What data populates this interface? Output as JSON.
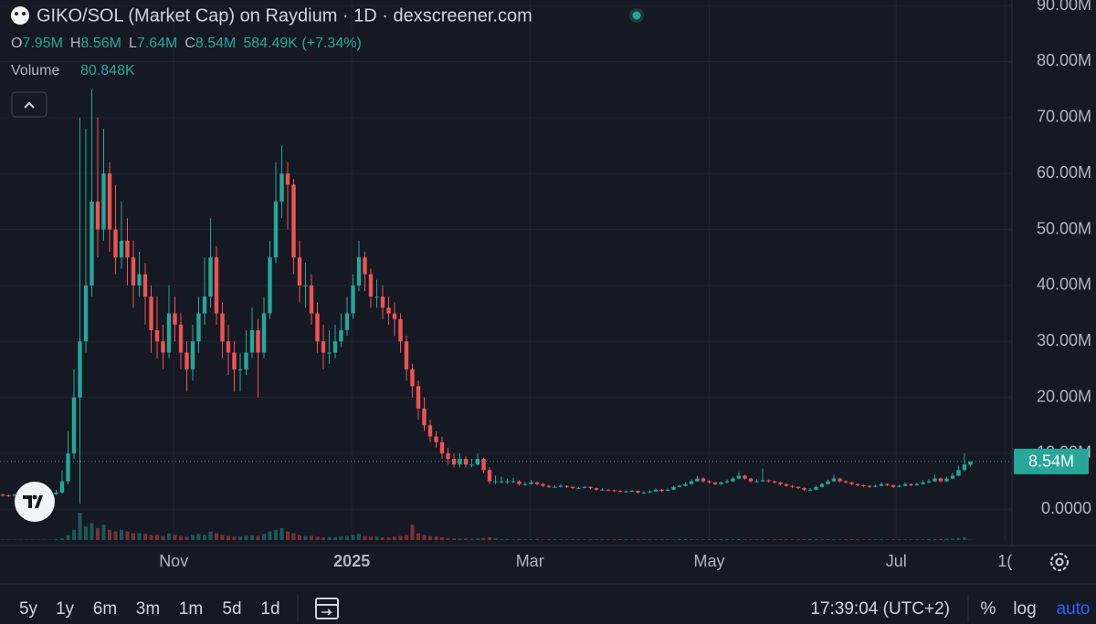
{
  "chart_data": {
    "type": "candlestick",
    "title": "GIKO/SOL (Market Cap) on Raydium · 1D · dexscreener.com",
    "ohlc_legend": [
      {
        "key": "O",
        "value": 7.95,
        "label": "7.95M"
      },
      {
        "key": "H",
        "value": 8.56,
        "label": "8.56M"
      },
      {
        "key": "L",
        "value": 7.64,
        "label": "7.64M"
      },
      {
        "key": "C",
        "value": 8.54,
        "label": "8.54M"
      }
    ],
    "change": "584.49K (+7.34%)",
    "volume_title": "Volume",
    "volume_legend": {
      "value": 80.848,
      "label": "80.848K"
    },
    "up_color": "#26a69a",
    "down_color": "#ef5350",
    "ylim": [
      -5.5,
      91
    ],
    "yticks": [
      {
        "value": 0,
        "label": "0.0000"
      },
      {
        "value": 10,
        "label": "10.00M"
      },
      {
        "value": 20,
        "label": "20.00M"
      },
      {
        "value": 30,
        "label": "30.00M"
      },
      {
        "value": 40,
        "label": "40.00M"
      },
      {
        "value": 50,
        "label": "50.00M"
      },
      {
        "value": 60,
        "label": "60.00M"
      },
      {
        "value": 70,
        "label": "70.00M"
      },
      {
        "value": 80,
        "label": "80.00M"
      },
      {
        "value": 90,
        "label": "90.00M"
      }
    ],
    "xticks": [
      {
        "value": 28.8,
        "label": "Nov"
      },
      {
        "value": 58.8,
        "label": "2025"
      },
      {
        "value": 88.8,
        "label": "Mar"
      },
      {
        "value": 119,
        "label": "May"
      },
      {
        "value": 150.5,
        "label": "Jul"
      },
      {
        "value": 168.8,
        "label": "1("
      }
    ],
    "last_price": {
      "value": 8.54,
      "label": "8.54M"
    },
    "candles": [
      [
        2.6,
        2.8,
        2.3,
        2.5
      ],
      [
        2.5,
        2.7,
        2.2,
        2.4
      ],
      [
        2.4,
        2.8,
        2.3,
        2.6
      ],
      [
        2.6,
        2.7,
        2.3,
        2.5
      ],
      [
        2.5,
        2.6,
        2.1,
        2.3
      ],
      [
        2.3,
        2.6,
        2.2,
        2.4
      ],
      [
        2.4,
        2.8,
        2.3,
        2.6
      ],
      [
        2.6,
        2.7,
        2.3,
        2.5
      ],
      [
        2.5,
        2.9,
        2.4,
        2.7
      ],
      [
        2.7,
        3.5,
        2.6,
        3
      ],
      [
        3,
        7,
        2.8,
        5
      ],
      [
        5,
        14,
        4.5,
        10
      ],
      [
        10,
        25,
        9,
        20
      ],
      [
        20,
        70,
        1,
        30
      ],
      [
        30,
        68,
        28,
        40
      ],
      [
        40,
        75,
        38,
        55
      ],
      [
        55,
        70,
        45,
        50
      ],
      [
        50,
        68,
        48,
        60
      ],
      [
        60,
        62,
        46,
        50
      ],
      [
        50,
        58,
        42,
        45
      ],
      [
        45,
        55,
        43,
        48
      ],
      [
        48,
        52,
        40,
        45
      ],
      [
        45,
        48,
        36,
        40
      ],
      [
        40,
        46,
        38,
        42
      ],
      [
        42,
        44,
        33,
        38
      ],
      [
        38,
        40,
        28,
        32
      ],
      [
        32,
        38,
        27,
        30
      ],
      [
        30,
        33,
        25,
        28
      ],
      [
        28,
        40,
        27,
        35
      ],
      [
        35,
        38,
        30,
        33
      ],
      [
        33,
        35,
        25,
        28
      ],
      [
        28,
        30,
        21,
        25
      ],
      [
        25,
        33,
        23,
        30
      ],
      [
        30,
        38,
        28,
        35
      ],
      [
        35,
        45,
        33,
        38
      ],
      [
        38,
        52,
        36,
        45
      ],
      [
        45,
        47,
        33,
        35
      ],
      [
        35,
        37,
        27,
        30
      ],
      [
        30,
        33,
        24,
        28
      ],
      [
        28,
        30,
        21,
        25
      ],
      [
        25,
        28,
        21,
        25
      ],
      [
        25,
        32,
        24,
        28
      ],
      [
        28,
        36,
        27,
        32
      ],
      [
        32,
        34,
        20,
        28
      ],
      [
        28,
        38,
        27,
        35
      ],
      [
        35,
        48,
        34,
        45
      ],
      [
        45,
        62,
        44,
        55
      ],
      [
        55,
        65,
        52,
        60
      ],
      [
        60,
        62,
        50,
        58
      ],
      [
        58,
        59,
        42,
        45
      ],
      [
        45,
        48,
        37,
        40
      ],
      [
        40,
        44,
        36,
        40
      ],
      [
        40,
        42,
        33,
        35
      ],
      [
        35,
        37,
        28,
        30
      ],
      [
        30,
        33,
        25,
        28
      ],
      [
        28,
        32,
        26,
        28
      ],
      [
        28,
        33,
        27,
        30
      ],
      [
        30,
        35,
        29,
        32
      ],
      [
        32,
        38,
        31,
        35
      ],
      [
        35,
        42,
        34,
        40
      ],
      [
        40,
        48,
        39,
        45
      ],
      [
        45,
        46,
        39,
        42
      ],
      [
        42,
        43,
        36,
        38
      ],
      [
        38,
        41,
        36,
        38
      ],
      [
        38,
        40,
        34,
        36
      ],
      [
        36,
        38,
        33,
        35
      ],
      [
        35,
        37,
        31,
        34
      ],
      [
        34,
        35,
        28,
        30
      ],
      [
        30,
        31,
        23,
        25
      ],
      [
        25,
        26,
        20,
        22
      ],
      [
        22,
        23,
        16,
        18
      ],
      [
        18,
        20,
        14,
        15
      ],
      [
        15,
        16,
        12,
        13
      ],
      [
        13,
        14,
        11,
        12
      ],
      [
        12,
        13,
        9,
        10
      ],
      [
        10,
        11,
        8,
        9
      ],
      [
        9,
        10,
        7.5,
        8
      ],
      [
        8,
        10,
        7.5,
        9
      ],
      [
        9,
        9.5,
        7.5,
        8
      ],
      [
        8,
        9,
        7.5,
        8
      ],
      [
        8,
        10,
        7.8,
        9
      ],
      [
        9,
        9.2,
        6.5,
        7
      ],
      [
        7,
        7.5,
        4.5,
        5
      ],
      [
        5,
        6,
        4.5,
        5
      ],
      [
        5,
        5.8,
        4.6,
        5
      ],
      [
        5,
        5.5,
        4.5,
        5
      ],
      [
        5,
        5.6,
        4.7,
        5
      ],
      [
        5,
        5.2,
        4.2,
        4.5
      ],
      [
        4.5,
        4.9,
        4.2,
        4.5
      ],
      [
        4.5,
        5.2,
        4.4,
        4.8
      ],
      [
        4.8,
        5,
        4.3,
        4.5
      ],
      [
        4.5,
        4.7,
        4,
        4.2
      ],
      [
        4.2,
        4.4,
        3.8,
        4
      ],
      [
        4,
        4.3,
        3.8,
        4
      ],
      [
        4,
        4.5,
        3.9,
        4.2
      ],
      [
        4.2,
        4.3,
        3.8,
        4
      ],
      [
        4,
        4.1,
        3.6,
        3.8
      ],
      [
        3.8,
        4,
        3.6,
        3.8
      ],
      [
        3.8,
        4.2,
        3.7,
        4
      ],
      [
        4,
        4.1,
        3.6,
        3.8
      ],
      [
        3.8,
        3.9,
        3.3,
        3.5
      ],
      [
        3.5,
        3.7,
        3.3,
        3.5
      ],
      [
        3.5,
        3.6,
        3.2,
        3.4
      ],
      [
        3.4,
        3.5,
        3.1,
        3.3
      ],
      [
        3.3,
        3.4,
        3,
        3.2
      ],
      [
        3.2,
        3.4,
        3,
        3.2
      ],
      [
        3.2,
        3.5,
        3.1,
        3.3
      ],
      [
        3.3,
        3.4,
        2.8,
        3
      ],
      [
        3,
        3.2,
        2.8,
        3
      ],
      [
        3,
        3.4,
        2.9,
        3.2
      ],
      [
        3.2,
        3.7,
        3.1,
        3.5
      ],
      [
        3.5,
        3.6,
        3.1,
        3.3
      ],
      [
        3.3,
        3.7,
        3.2,
        3.5
      ],
      [
        3.5,
        4.2,
        3.4,
        4
      ],
      [
        4,
        4.4,
        3.9,
        4.2
      ],
      [
        4.2,
        4.8,
        4.1,
        4.5
      ],
      [
        4.5,
        5.4,
        4.4,
        5
      ],
      [
        5,
        6,
        4.9,
        5.5
      ],
      [
        5.5,
        5.7,
        4.8,
        5
      ],
      [
        5,
        5.2,
        4.6,
        4.8
      ],
      [
        4.8,
        4.9,
        4.3,
        4.5
      ],
      [
        4.5,
        5,
        4.4,
        4.8
      ],
      [
        4.8,
        5.3,
        4.7,
        5
      ],
      [
        5,
        5.8,
        4.9,
        5.5
      ],
      [
        5.5,
        6.7,
        5.4,
        6
      ],
      [
        6,
        6.2,
        5.3,
        5.5
      ],
      [
        5.5,
        5.6,
        4.8,
        5
      ],
      [
        5,
        5.4,
        4.8,
        5
      ],
      [
        5,
        7.3,
        4.9,
        5.2
      ],
      [
        5.2,
        5.3,
        4.8,
        5
      ],
      [
        5,
        5.1,
        4.6,
        4.8
      ],
      [
        4.8,
        4.9,
        4.3,
        4.5
      ],
      [
        4.5,
        4.6,
        4,
        4.2
      ],
      [
        4.2,
        4.3,
        3.8,
        4
      ],
      [
        4,
        4.1,
        3.6,
        3.8
      ],
      [
        3.8,
        3.9,
        3.3,
        3.5
      ],
      [
        3.5,
        3.8,
        3.3,
        3.5
      ],
      [
        3.5,
        4.2,
        3.4,
        4
      ],
      [
        4,
        4.7,
        3.9,
        4.5
      ],
      [
        4.5,
        5.3,
        4.4,
        5
      ],
      [
        5,
        6.2,
        4.9,
        5.5
      ],
      [
        5.5,
        5.6,
        4.8,
        5
      ],
      [
        5,
        5.2,
        4.6,
        4.8
      ],
      [
        4.8,
        4.9,
        4.3,
        4.5
      ],
      [
        4.5,
        4.6,
        4.1,
        4.3
      ],
      [
        4.3,
        4.5,
        4,
        4.2
      ],
      [
        4.2,
        4.3,
        3.8,
        4
      ],
      [
        4,
        4.4,
        3.9,
        4.2
      ],
      [
        4.2,
        4.8,
        4.1,
        4.5
      ],
      [
        4.5,
        4.6,
        4.1,
        4.3
      ],
      [
        4.3,
        4.4,
        3.8,
        4
      ],
      [
        4,
        4.4,
        3.9,
        4.2
      ],
      [
        4.2,
        4.8,
        4.1,
        4.5
      ],
      [
        4.5,
        4.6,
        4.1,
        4.3
      ],
      [
        4.3,
        4.8,
        4.2,
        4.5
      ],
      [
        4.5,
        5.2,
        4.4,
        4.8
      ],
      [
        4.8,
        5.4,
        4.6,
        5
      ],
      [
        5,
        6.2,
        4.9,
        5.5
      ],
      [
        5.5,
        5.7,
        4.8,
        5
      ],
      [
        5,
        5.8,
        4.9,
        5.5
      ],
      [
        5.5,
        6.5,
        5.4,
        6
      ],
      [
        6,
        7.8,
        5.9,
        7
      ],
      [
        7,
        10,
        6.8,
        8
      ],
      [
        7.95,
        8.56,
        7.64,
        8.54
      ]
    ],
    "volumes": [
      100,
      100,
      100,
      100,
      100,
      100,
      100,
      100,
      100,
      200,
      500,
      1500,
      3000,
      8000,
      4000,
      5000,
      3500,
      4500,
      3000,
      2500,
      3000,
      2500,
      2000,
      2000,
      1800,
      1500,
      1500,
      1200,
      2000,
      1500,
      1200,
      1000,
      1500,
      1800,
      1500,
      2500,
      2000,
      1500,
      1200,
      1000,
      1000,
      1200,
      1500,
      1200,
      1800,
      2500,
      3000,
      3500,
      2500,
      2000,
      1500,
      1200,
      1200,
      1000,
      800,
      800,
      800,
      1000,
      1200,
      1500,
      1800,
      1200,
      1000,
      1000,
      800,
      800,
      1000,
      1200,
      1500,
      4500,
      2000,
      1500,
      1200,
      1000,
      800,
      600,
      500,
      500,
      400,
      400,
      500,
      600,
      800,
      500,
      300,
      300,
      200,
      300,
      200,
      200,
      300,
      200,
      200,
      200,
      200,
      200,
      200,
      200,
      200,
      200,
      200,
      200,
      200,
      200,
      200,
      200,
      200,
      200,
      200,
      200,
      200,
      200,
      200,
      200,
      300,
      300,
      200,
      200,
      200,
      200,
      200,
      300,
      300,
      200,
      300,
      200,
      200,
      200,
      200,
      200,
      200,
      200,
      200,
      200,
      200,
      200,
      300,
      300,
      200,
      200,
      200,
      200,
      200,
      200,
      200,
      200,
      200,
      200,
      200,
      200,
      200,
      200,
      200,
      200,
      200,
      200,
      300,
      300,
      300,
      400,
      500,
      600,
      800,
      80.848
    ]
  },
  "toolbar": {
    "ranges": [
      "5y",
      "1y",
      "6m",
      "3m",
      "1m",
      "5d",
      "1d"
    ],
    "time": "17:39:04 (UTC+2)",
    "options": [
      "%",
      "log",
      "auto"
    ]
  }
}
